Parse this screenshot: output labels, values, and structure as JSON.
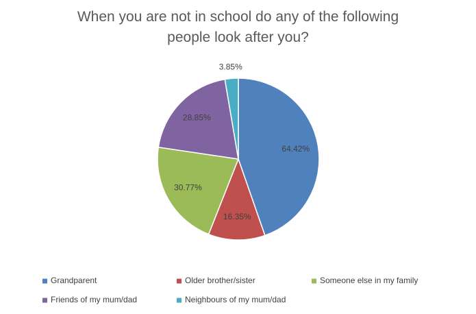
{
  "chart_data": {
    "type": "pie",
    "title": "When you are not in school do any of the following people look after you?",
    "categories": [
      "Grandparent",
      "Older brother/sister",
      "Someone else in my family",
      "Friends of my mum/dad",
      "Neighbours of my mum/dad"
    ],
    "values": [
      64.42,
      16.35,
      30.77,
      28.85,
      3.85
    ],
    "value_labels": [
      "64.42%",
      "16.35%",
      "30.77%",
      "28.85%",
      "3.85%"
    ],
    "colors": [
      "#4f81bd",
      "#c0504d",
      "#9bbb59",
      "#8064a2",
      "#4bacc6"
    ],
    "legend": "bottom"
  }
}
